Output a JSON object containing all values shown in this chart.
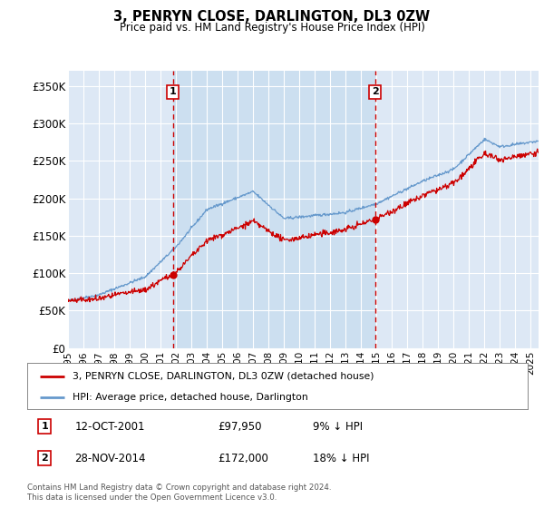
{
  "title": "3, PENRYN CLOSE, DARLINGTON, DL3 0ZW",
  "subtitle": "Price paid vs. HM Land Registry's House Price Index (HPI)",
  "background_color": "#dde8f5",
  "highlight_color": "#ccdff0",
  "grid_color": "#ffffff",
  "ylim": [
    0,
    370000
  ],
  "yticks": [
    0,
    50000,
    100000,
    150000,
    200000,
    250000,
    300000,
    350000
  ],
  "ytick_labels": [
    "£0",
    "£50K",
    "£100K",
    "£150K",
    "£200K",
    "£250K",
    "£300K",
    "£350K"
  ],
  "sale1_date_num": 2001.79,
  "sale1_price": 97950,
  "sale1_label": "1",
  "sale1_date_str": "12-OCT-2001",
  "sale1_price_str": "£97,950",
  "sale1_hpi_str": "9% ↓ HPI",
  "sale2_date_num": 2014.91,
  "sale2_price": 172000,
  "sale2_label": "2",
  "sale2_date_str": "28-NOV-2014",
  "sale2_price_str": "£172,000",
  "sale2_hpi_str": "18% ↓ HPI",
  "red_line_color": "#cc0000",
  "blue_line_color": "#6699cc",
  "vline_color": "#cc0000",
  "legend_label_red": "3, PENRYN CLOSE, DARLINGTON, DL3 0ZW (detached house)",
  "legend_label_blue": "HPI: Average price, detached house, Darlington",
  "footnote": "Contains HM Land Registry data © Crown copyright and database right 2024.\nThis data is licensed under the Open Government Licence v3.0.",
  "xstart": 1995.0,
  "xend": 2025.5
}
